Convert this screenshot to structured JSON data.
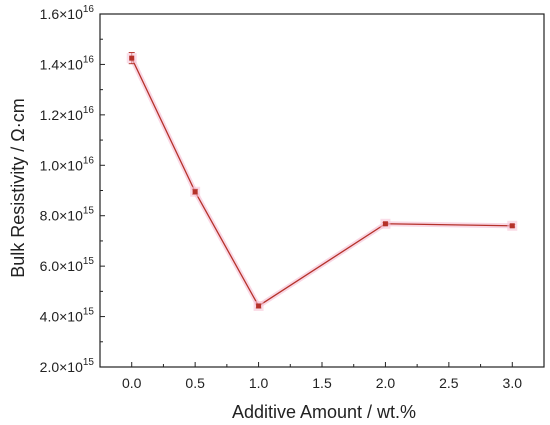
{
  "chart_data": {
    "type": "line",
    "title": "",
    "xlabel": "Additive Amount / wt.%",
    "ylabel": "Bulk Resistivity / Ω·cm",
    "xlim": [
      -0.25,
      3.25
    ],
    "ylim": [
      2000000000000000.0,
      1.6e+16
    ],
    "x_ticks": [
      0.0,
      0.5,
      1.0,
      1.5,
      2.0,
      2.5,
      3.0
    ],
    "x_tick_labels": [
      "0.0",
      "0.5",
      "1.0",
      "1.5",
      "2.0",
      "2.5",
      "3.0"
    ],
    "y_ticks": [
      {
        "value": 2000000000000000.0,
        "mantissa": "2.0×10",
        "exp": "15"
      },
      {
        "value": 4000000000000000.0,
        "mantissa": "4.0×10",
        "exp": "15"
      },
      {
        "value": 6000000000000000.0,
        "mantissa": "6.0×10",
        "exp": "15"
      },
      {
        "value": 8000000000000000.0,
        "mantissa": "8.0×10",
        "exp": "15"
      },
      {
        "value": 1e+16,
        "mantissa": "1.0×10",
        "exp": "16"
      },
      {
        "value": 1.2e+16,
        "mantissa": "1.2×10",
        "exp": "16"
      },
      {
        "value": 1.4e+16,
        "mantissa": "1.4×10",
        "exp": "16"
      },
      {
        "value": 1.6e+16,
        "mantissa": "1.6×10",
        "exp": "16"
      }
    ],
    "series": [
      {
        "x": [
          0.0,
          0.5,
          1.0,
          2.0,
          3.0
        ],
        "y": [
          1.425e+16,
          8950000000000000.0,
          4420000000000000.0,
          7680000000000000.0,
          7600000000000000.0
        ],
        "error": [
          220000000000000.0,
          100000000000000.0,
          80000000000000.0,
          50000000000000.0,
          50000000000000.0
        ],
        "color": "#b5322a",
        "glow_color": "#f6c6d8"
      }
    ],
    "grid": false,
    "legend": "none"
  }
}
